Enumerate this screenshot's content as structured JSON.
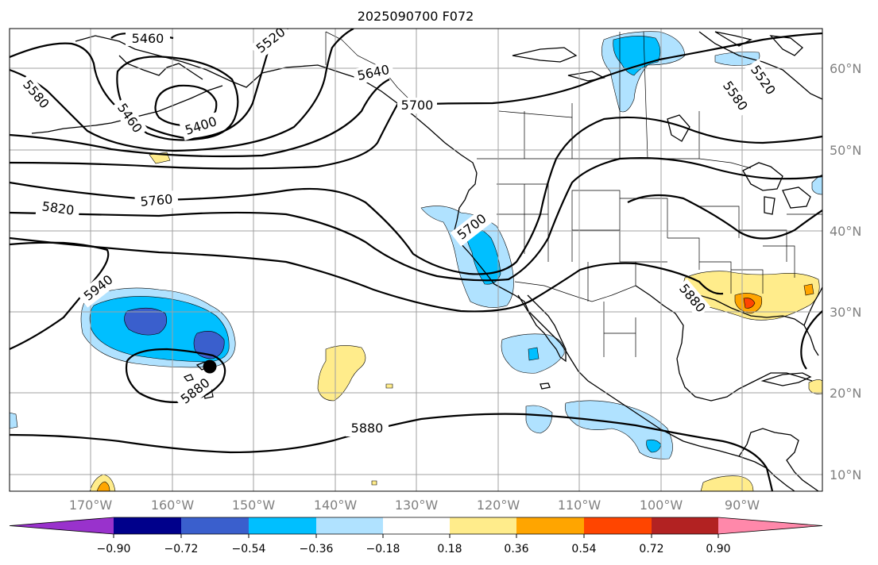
{
  "title": "2025090700 F072",
  "map": {
    "lon_ticks": [
      "170°W",
      "160°W",
      "150°W",
      "140°W",
      "130°W",
      "120°W",
      "110°W",
      "100°W",
      "90°W"
    ],
    "lat_ticks": [
      "60°N",
      "50°N",
      "40°N",
      "30°N",
      "20°N",
      "10°N"
    ],
    "contour_labels": [
      "5460",
      "5520",
      "5580",
      "5460",
      "5400",
      "5640",
      "5700",
      "5580",
      "5520",
      "5820",
      "5760",
      "5700",
      "5940",
      "5880",
      "5880",
      "5880"
    ],
    "marker": "low-center-dot"
  },
  "colorbar": {
    "ticks": [
      "−0.90",
      "−0.72",
      "−0.54",
      "−0.36",
      "−0.18",
      "0.18",
      "0.36",
      "0.54",
      "0.72",
      "0.90"
    ],
    "colors": [
      "#9932CC",
      "#00008B",
      "#3A5FCD",
      "#00BFFF",
      "#B0E2FF",
      "#FFFFFF",
      "#FFEC8B",
      "#FFA500",
      "#FF4500",
      "#B22222",
      "#FF88AA"
    ]
  }
}
